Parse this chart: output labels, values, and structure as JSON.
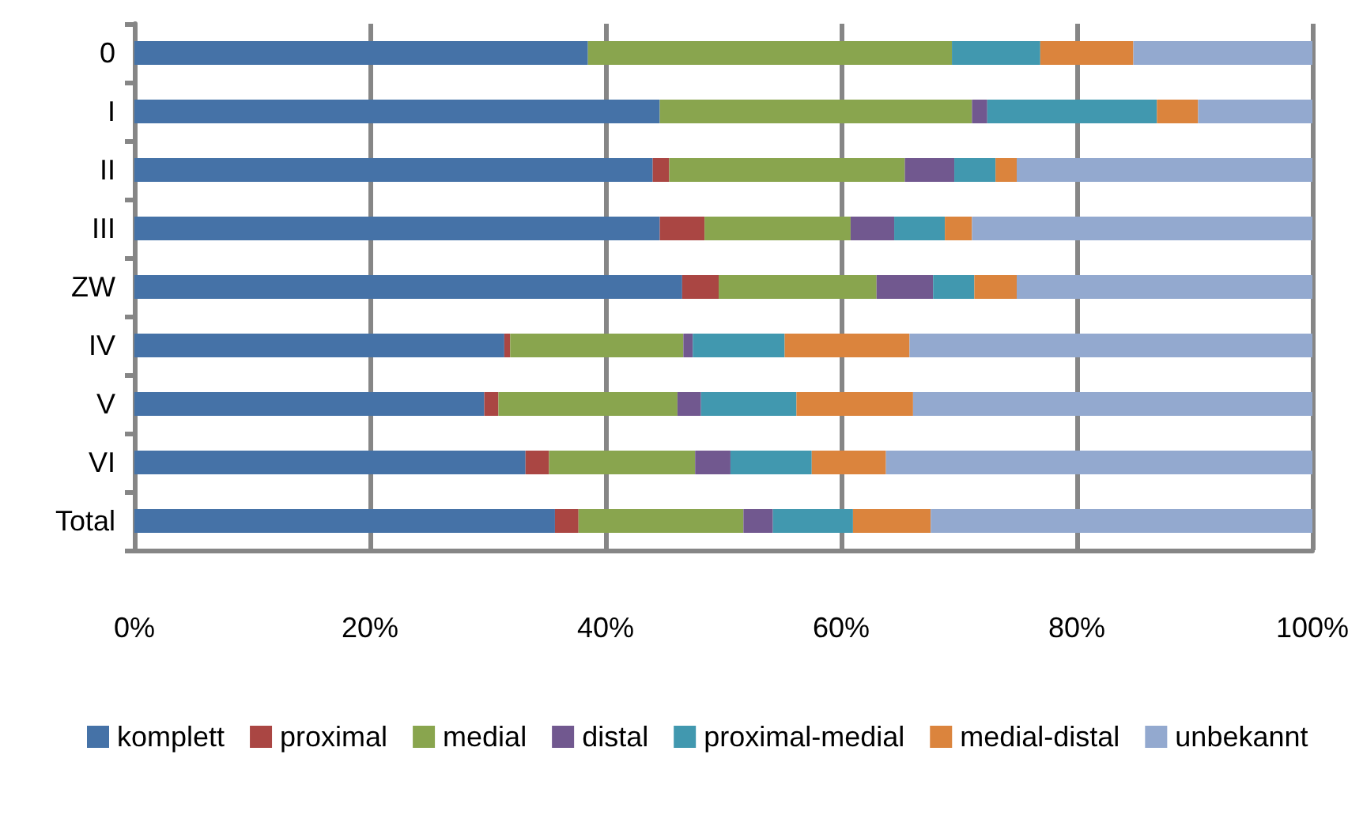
{
  "chart_data": {
    "type": "bar",
    "orientation": "horizontal",
    "stacked": true,
    "categories": [
      "0",
      "I",
      "II",
      "III",
      "ZW",
      "IV",
      "V",
      "VI",
      "Total"
    ],
    "series": [
      {
        "name": "komplett",
        "color": "#4572a7",
        "values": [
          38.5,
          44.6,
          44.0,
          44.6,
          46.5,
          31.4,
          29.7,
          33.2,
          35.7
        ]
      },
      {
        "name": "proximal",
        "color": "#aa4643",
        "values": [
          0,
          0,
          1.4,
          3.8,
          3.1,
          0.5,
          1.2,
          2.0,
          2.0
        ]
      },
      {
        "name": "medial",
        "color": "#89a54e",
        "values": [
          30.9,
          26.5,
          20.0,
          12.4,
          13.4,
          14.7,
          15.2,
          12.4,
          14.0
        ]
      },
      {
        "name": "distal",
        "color": "#71588f",
        "values": [
          0,
          1.3,
          4.2,
          3.7,
          4.8,
          0.8,
          2.0,
          3.0,
          2.5
        ]
      },
      {
        "name": "proximal-medial",
        "color": "#4198af",
        "values": [
          7.5,
          14.4,
          3.5,
          4.3,
          3.5,
          7.8,
          8.1,
          6.9,
          6.8
        ]
      },
      {
        "name": "medial-distal",
        "color": "#db843d",
        "values": [
          7.9,
          3.5,
          1.8,
          2.3,
          3.6,
          10.6,
          9.9,
          6.3,
          6.6
        ]
      },
      {
        "name": "unbekannt",
        "color": "#93a9cf",
        "values": [
          15.2,
          9.7,
          25.1,
          28.9,
          25.1,
          34.2,
          33.9,
          36.2,
          32.4
        ]
      }
    ],
    "xlim": [
      0,
      100
    ],
    "xticks": [
      {
        "value": 0,
        "label": "0%"
      },
      {
        "value": 20,
        "label": "20%"
      },
      {
        "value": 40,
        "label": "40%"
      },
      {
        "value": 60,
        "label": "60%"
      },
      {
        "value": 80,
        "label": "80%"
      },
      {
        "value": 100,
        "label": "100%"
      }
    ],
    "grid": "x",
    "legend": "bottom"
  }
}
